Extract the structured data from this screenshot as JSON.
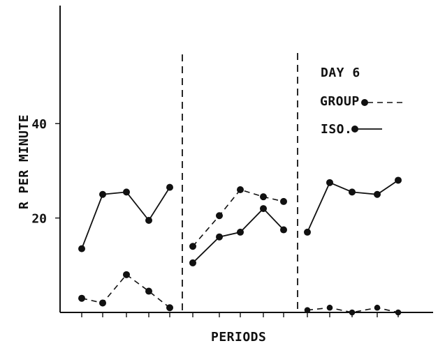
{
  "chart_data": {
    "type": "line",
    "xlabel": "PERIODS",
    "ylabel": "R PER MINUTE",
    "y_ticks": [
      20,
      40
    ],
    "ylim": [
      0,
      65
    ],
    "legend": {
      "title": "DAY 6",
      "items": [
        {
          "label": "GROUP",
          "series_key": "group"
        },
        {
          "label": "ISO.",
          "series_key": "iso"
        }
      ]
    },
    "series": [
      {
        "key": "iso",
        "name": "ISO.",
        "segments": [
          [
            13.5,
            25,
            25.5,
            19.5,
            26.5
          ],
          [
            10.5,
            16,
            17,
            22,
            17.5
          ],
          [
            17,
            27.5,
            25.5,
            25,
            28
          ]
        ]
      },
      {
        "key": "group",
        "name": "GROUP",
        "segments": [
          [
            3,
            2,
            8,
            4.5,
            1
          ],
          [
            14,
            20.5,
            26,
            24.5,
            23.5
          ],
          [
            0.5,
            1,
            0,
            1,
            0
          ]
        ]
      }
    ]
  }
}
